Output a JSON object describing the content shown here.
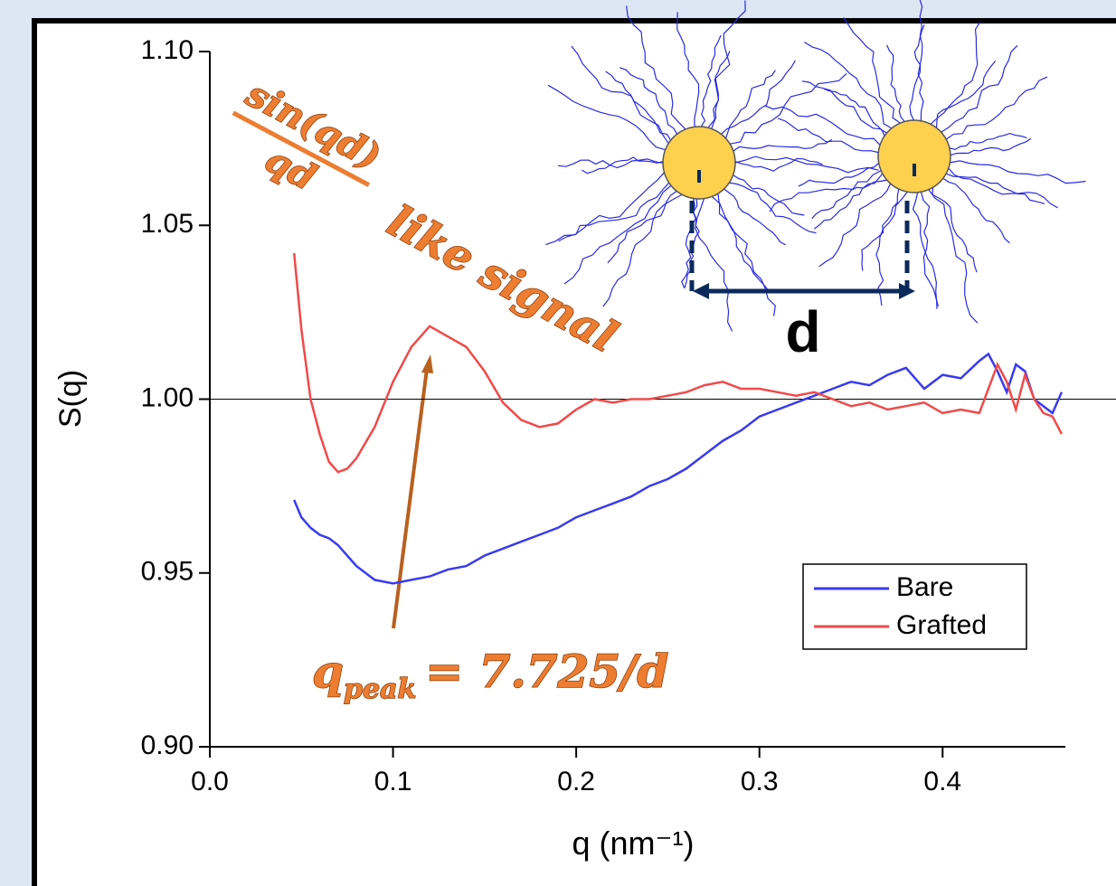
{
  "chart_data": {
    "type": "line",
    "xlabel": "q (nm⁻¹)",
    "ylabel": "S(q)",
    "x": [
      0.046,
      0.05,
      0.055,
      0.06,
      0.065,
      0.07,
      0.075,
      0.08,
      0.09,
      0.1,
      0.11,
      0.12,
      0.13,
      0.14,
      0.15,
      0.16,
      0.17,
      0.18,
      0.19,
      0.2,
      0.21,
      0.22,
      0.23,
      0.24,
      0.25,
      0.26,
      0.27,
      0.28,
      0.29,
      0.3,
      0.31,
      0.32,
      0.33,
      0.34,
      0.35,
      0.36,
      0.37,
      0.38,
      0.39,
      0.4,
      0.41,
      0.42,
      0.425,
      0.43,
      0.435,
      0.44,
      0.445,
      0.45,
      0.455,
      0.46,
      0.465
    ],
    "series": [
      {
        "name": "Bare",
        "color": "#3a3af0",
        "values": [
          0.971,
          0.966,
          0.963,
          0.961,
          0.96,
          0.958,
          0.955,
          0.952,
          0.948,
          0.947,
          0.948,
          0.949,
          0.951,
          0.952,
          0.955,
          0.957,
          0.959,
          0.961,
          0.963,
          0.966,
          0.968,
          0.97,
          0.972,
          0.975,
          0.977,
          0.98,
          0.984,
          0.988,
          0.991,
          0.995,
          0.997,
          0.999,
          1.001,
          1.003,
          1.005,
          1.004,
          1.007,
          1.009,
          1.003,
          1.007,
          1.006,
          1.011,
          1.013,
          1.008,
          1.002,
          1.01,
          1.008,
          1.0,
          0.998,
          0.996,
          1.002
        ]
      },
      {
        "name": "Grafted",
        "color": "#f04a4a",
        "values": [
          1.042,
          1.02,
          1.0,
          0.99,
          0.982,
          0.979,
          0.98,
          0.983,
          0.992,
          1.005,
          1.015,
          1.021,
          1.018,
          1.015,
          1.008,
          0.999,
          0.994,
          0.992,
          0.993,
          0.997,
          1.0,
          0.999,
          1.0,
          1.0,
          1.001,
          1.002,
          1.004,
          1.005,
          1.003,
          1.003,
          1.002,
          1.001,
          1.002,
          1.0,
          0.998,
          0.999,
          0.997,
          0.998,
          0.999,
          0.996,
          0.997,
          0.996,
          1.003,
          1.01,
          1.005,
          0.997,
          1.007,
          1.0,
          0.996,
          0.995,
          0.99
        ]
      }
    ],
    "xlim": [
      0,
      0.467
    ],
    "ylim": [
      0.9,
      1.1
    ],
    "xticks": [
      {
        "value": 0,
        "label": "0.0"
      },
      0.1,
      0.2,
      0.3,
      0.4
    ],
    "yticks": [
      {
        "value": 0.9,
        "label": "0.90"
      },
      0.95,
      {
        "value": 1.0,
        "label": "1.00"
      },
      1.05,
      {
        "value": 1.1,
        "label": "1.10"
      }
    ],
    "reference_line": 1.0,
    "legend": "lower right",
    "annotations": {
      "numerator": "sin(qd)",
      "denominator": "qd",
      "signal": "like signal",
      "peak_symbol": "q",
      "peak_subscript": "peak",
      "peak_formula": "= 7.725/d",
      "distance": "d"
    }
  }
}
